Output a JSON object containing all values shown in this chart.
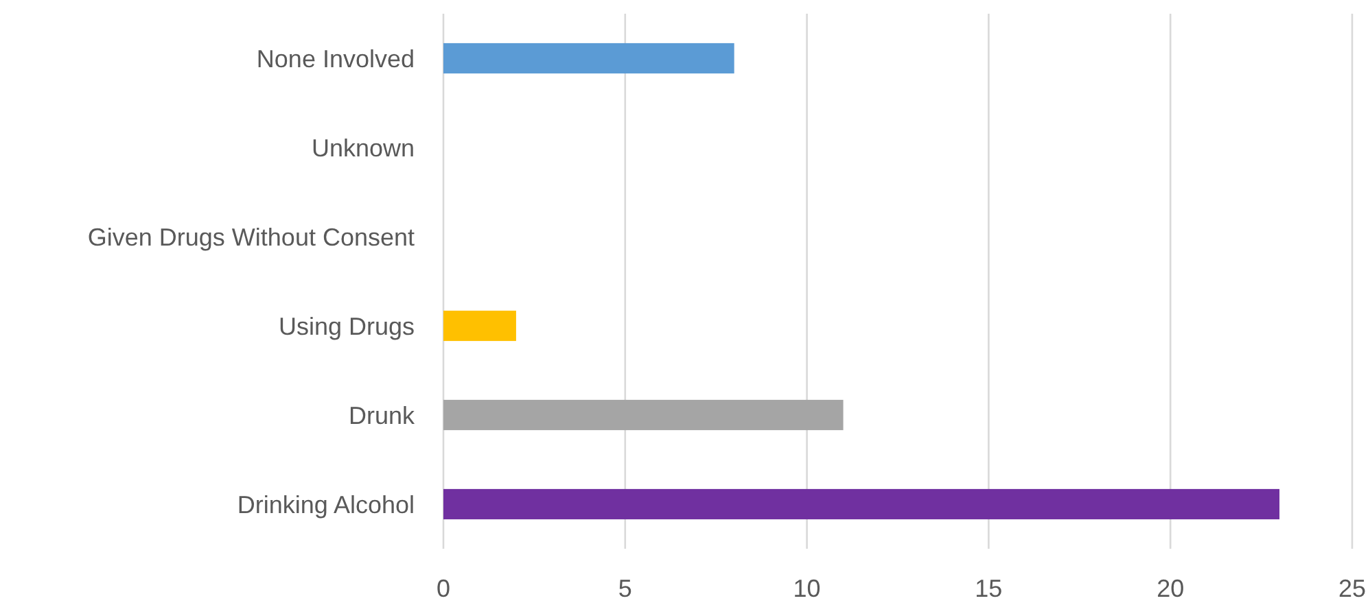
{
  "chart_data": {
    "type": "bar",
    "orientation": "horizontal",
    "categories": [
      "None Involved",
      "Unknown",
      "Given Drugs Without Consent",
      "Using Drugs",
      "Drunk",
      "Drinking Alcohol"
    ],
    "values": [
      8,
      0,
      0,
      2,
      11,
      23
    ],
    "colors": [
      "#5b9bd5",
      "#ed7d31",
      "#70ad47",
      "#ffc000",
      "#a5a5a5",
      "#7030a0"
    ],
    "xlim": [
      0,
      25
    ],
    "xticks": [
      0,
      5,
      10,
      15,
      20,
      25
    ],
    "grid": "x"
  }
}
